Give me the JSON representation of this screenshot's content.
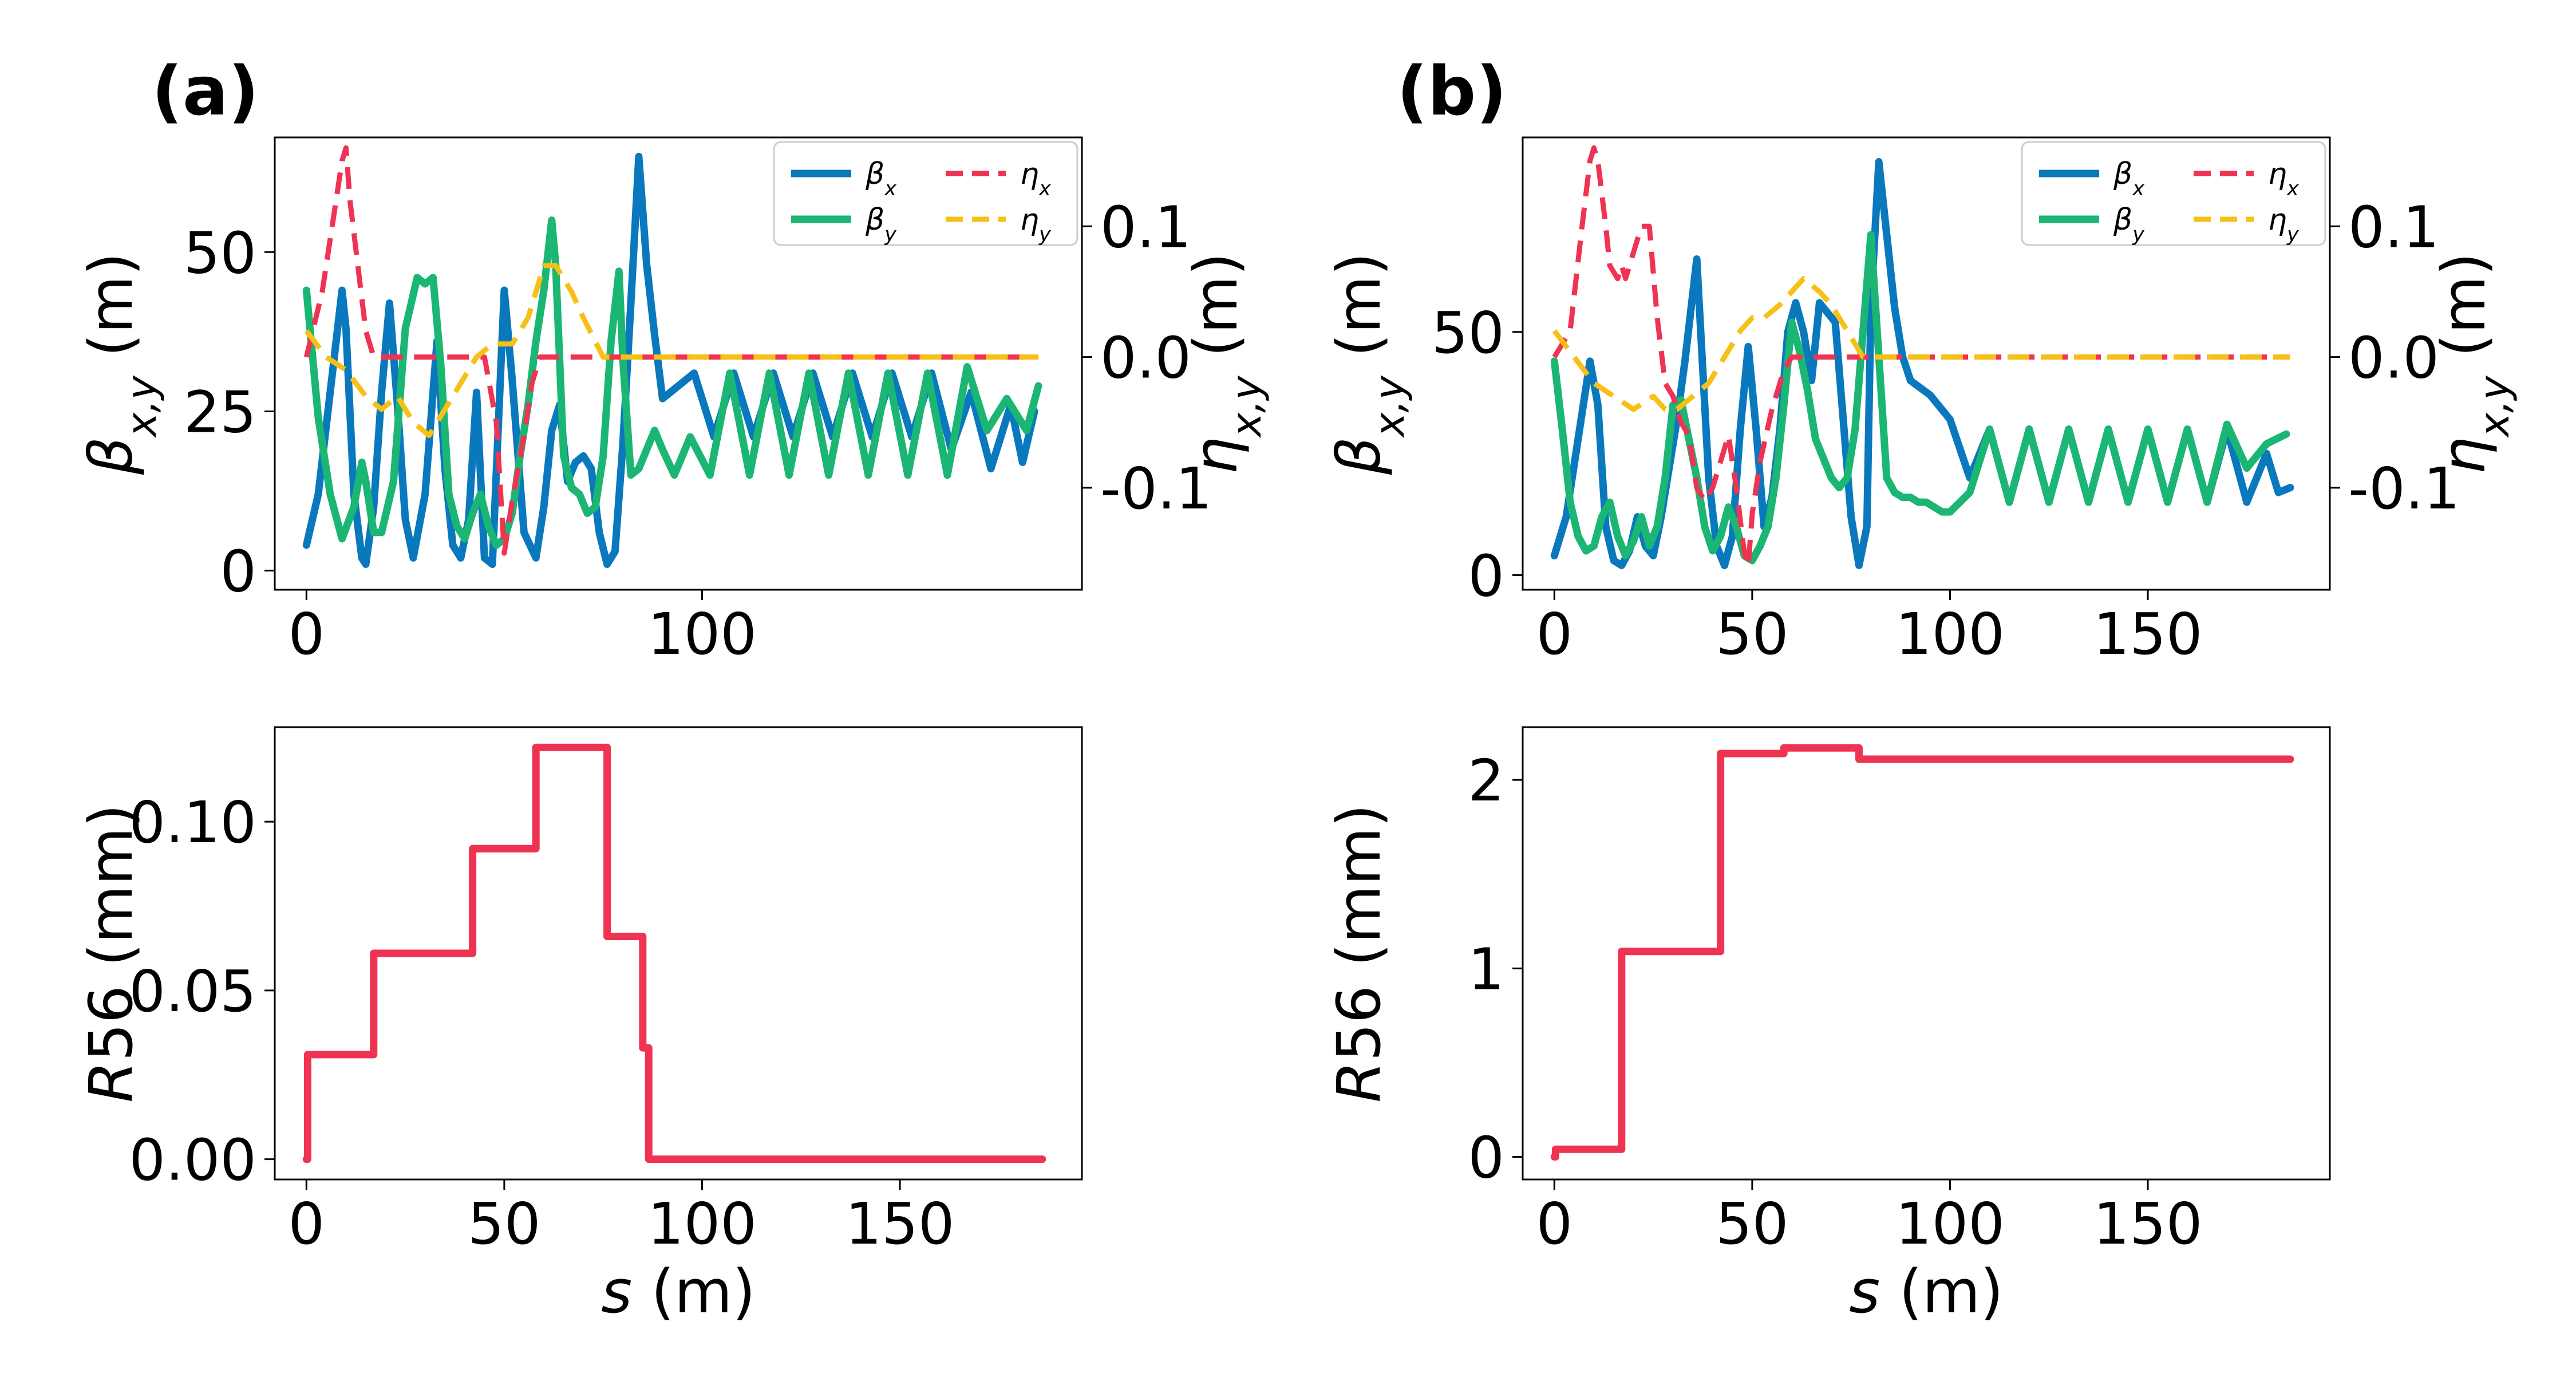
{
  "labels": {
    "a": "(a)",
    "b": "(b)"
  },
  "colors": {
    "beta_x": "#0a78bd",
    "beta_y": "#1bb674",
    "eta_x": "#ef3352",
    "eta_y": "#f8bf16",
    "r56": "#ef3352"
  },
  "chart_data": [
    {
      "id": "a-top",
      "type": "line",
      "xlabel": "",
      "ylabel": "β_{x,y} (m)",
      "y2label": "η_{x,y} (m)",
      "xlim": [
        -8,
        196
      ],
      "ylim": [
        -3,
        68
      ],
      "y2lim": [
        -0.178,
        0.168
      ],
      "xticks": [
        0,
        100
      ],
      "xtick_labels": [
        "0",
        "100"
      ],
      "yticks": [
        0,
        25,
        50
      ],
      "ytick_labels": [
        "0",
        "25",
        "50"
      ],
      "y2ticks": [
        -0.1,
        0.0,
        0.1
      ],
      "y2tick_labels": [
        "-0.1",
        "0.0",
        "0.1"
      ],
      "legend": "top-right",
      "series": [
        {
          "name": "β_x",
          "axis": "left",
          "style": "solid",
          "color": "#0a78bd",
          "x": [
            0,
            3,
            6,
            9,
            10,
            12,
            14,
            15,
            17,
            19,
            21,
            23,
            25,
            27,
            30,
            33,
            35,
            37,
            39,
            41,
            43,
            45,
            47,
            49,
            50,
            52,
            55,
            58,
            60,
            62,
            64,
            66,
            68,
            70,
            72,
            74,
            76,
            78,
            80,
            82,
            84,
            86,
            88,
            90,
            94,
            98,
            103,
            108,
            113,
            118,
            123,
            128,
            133,
            138,
            143,
            148,
            153,
            158,
            163,
            168,
            173,
            178,
            181,
            184
          ],
          "y": [
            4,
            12,
            28,
            44,
            38,
            12,
            2,
            1,
            10,
            28,
            42,
            26,
            8,
            2,
            12,
            36,
            16,
            4,
            2,
            8,
            28,
            2,
            1,
            30,
            44,
            30,
            6,
            2,
            10,
            22,
            26,
            14,
            17,
            18,
            16,
            6,
            1,
            3,
            20,
            42,
            65,
            48,
            37,
            27,
            29,
            31,
            21,
            31,
            21,
            31,
            21,
            31,
            21,
            31,
            21,
            31,
            21,
            31,
            19,
            28,
            16,
            26,
            17,
            25
          ]
        },
        {
          "name": "β_y",
          "axis": "left",
          "style": "solid",
          "color": "#1bb674",
          "x": [
            0,
            3,
            6,
            9,
            12,
            14,
            15,
            17,
            19,
            22,
            25,
            28,
            30,
            32,
            34,
            36,
            38,
            40,
            42,
            44,
            46,
            48,
            50,
            52,
            54,
            56,
            58,
            60,
            62,
            63,
            65,
            67,
            69,
            71,
            73,
            75,
            77,
            79,
            80,
            82,
            84,
            86,
            88,
            90,
            93,
            97,
            102,
            107,
            112,
            117,
            122,
            127,
            132,
            137,
            142,
            147,
            152,
            157,
            162,
            167,
            172,
            177,
            182,
            185
          ],
          "y": [
            44,
            24,
            12,
            5,
            10,
            17,
            14,
            6,
            6,
            14,
            38,
            46,
            45,
            46,
            32,
            12,
            7,
            5,
            9,
            12,
            7,
            4,
            5,
            9,
            18,
            26,
            36,
            44,
            55,
            48,
            18,
            13,
            12,
            9,
            10,
            18,
            36,
            47,
            33,
            15,
            16,
            19,
            22,
            19,
            15,
            21,
            15,
            31,
            15,
            31,
            15,
            31,
            15,
            31,
            15,
            31,
            15,
            31,
            15,
            32,
            22,
            27,
            22,
            29
          ]
        },
        {
          "name": "η_x",
          "axis": "right",
          "style": "dashed",
          "color": "#ef3352",
          "x": [
            0,
            4,
            7,
            9,
            10,
            11,
            13,
            15,
            17,
            30,
            40,
            45,
            48,
            50,
            52,
            55,
            57,
            59,
            61,
            65,
            80,
            90,
            100,
            150,
            185
          ],
          "y": [
            0,
            0.05,
            0.11,
            0.15,
            0.16,
            0.12,
            0.07,
            0.02,
            0,
            0,
            0,
            0,
            -0.05,
            -0.15,
            -0.11,
            -0.06,
            -0.02,
            0,
            0,
            0,
            0,
            0,
            0,
            0,
            0
          ]
        },
        {
          "name": "η_y",
          "axis": "right",
          "style": "dashed",
          "color": "#f8bf16",
          "x": [
            0,
            5,
            10,
            15,
            19,
            23,
            27,
            31,
            35,
            39,
            43,
            47,
            52,
            56,
            60,
            63,
            67,
            70,
            75,
            80,
            85,
            90,
            100,
            150,
            185
          ],
          "y": [
            0.02,
            0,
            -0.01,
            -0.03,
            -0.04,
            -0.03,
            -0.05,
            -0.06,
            -0.04,
            -0.02,
            0,
            0.01,
            0.01,
            0.03,
            0.07,
            0.07,
            0.05,
            0.03,
            0,
            0,
            0,
            0,
            0,
            0,
            0
          ]
        }
      ]
    },
    {
      "id": "a-bottom",
      "type": "line",
      "xlabel": "s (m)",
      "ylabel": "R56 (mm)",
      "xlim": [
        -8,
        196
      ],
      "ylim": [
        -0.006,
        0.128
      ],
      "xticks": [
        0,
        50,
        100,
        150
      ],
      "xtick_labels": [
        "0",
        "50",
        "100",
        "150"
      ],
      "yticks": [
        0,
        0.05,
        0.1
      ],
      "ytick_labels": [
        "0.00",
        "0.05",
        "0.10"
      ],
      "series": [
        {
          "name": "R56",
          "style": "solid",
          "color": "#ef3352",
          "x": [
            0,
            0.3,
            0.3,
            17,
            17,
            42,
            42,
            58,
            58,
            76,
            76,
            85,
            85,
            86.5,
            86.5,
            87.5,
            87.5,
            186
          ],
          "y": [
            0,
            0,
            0.031,
            0.031,
            0.061,
            0.061,
            0.092,
            0.092,
            0.122,
            0.122,
            0.066,
            0.066,
            0.033,
            0.033,
            0,
            0,
            0,
            0
          ]
        }
      ]
    },
    {
      "id": "b-top",
      "type": "line",
      "xlabel": "",
      "ylabel": "β_{x,y} (m)",
      "y2label": "η_{x,y} (m)",
      "xlim": [
        -8,
        196
      ],
      "ylim": [
        -3,
        90
      ],
      "y2lim": [
        -0.178,
        0.168
      ],
      "xticks": [
        0,
        50,
        100,
        150
      ],
      "xtick_labels": [
        "0",
        "50",
        "100",
        "150"
      ],
      "yticks": [
        0,
        50
      ],
      "ytick_labels": [
        "0",
        "50"
      ],
      "y2ticks": [
        -0.1,
        0.0,
        0.1
      ],
      "y2tick_labels": [
        "-0.1",
        "0.0",
        "0.1"
      ],
      "legend": "top-right",
      "series": [
        {
          "name": "β_x",
          "axis": "left",
          "style": "solid",
          "color": "#0a78bd",
          "x": [
            0,
            3,
            6,
            9,
            11,
            13,
            15,
            17,
            19,
            21,
            23,
            25,
            27,
            29,
            31,
            33,
            35,
            36,
            37,
            39,
            41,
            43,
            45,
            47,
            49,
            51,
            53,
            55,
            57,
            59,
            61,
            63,
            65,
            67,
            69,
            71,
            73,
            75,
            77,
            79,
            80,
            82,
            84,
            86,
            88,
            90,
            95,
            100,
            105,
            110,
            115,
            120,
            125,
            130,
            135,
            140,
            145,
            150,
            155,
            160,
            165,
            170,
            175,
            180,
            183,
            186
          ],
          "y": [
            4,
            12,
            28,
            44,
            35,
            10,
            3,
            2,
            5,
            12,
            6,
            4,
            12,
            22,
            32,
            44,
            58,
            65,
            50,
            20,
            6,
            2,
            8,
            30,
            47,
            30,
            10,
            16,
            30,
            50,
            56,
            50,
            40,
            56,
            54,
            52,
            32,
            12,
            2,
            10,
            55,
            85,
            70,
            55,
            45,
            40,
            37,
            32,
            20,
            30,
            15,
            30,
            15,
            30,
            15,
            30,
            15,
            30,
            15,
            30,
            15,
            30,
            15,
            25,
            17,
            18
          ]
        },
        {
          "name": "β_y",
          "axis": "left",
          "style": "solid",
          "color": "#1bb674",
          "x": [
            0,
            2,
            4,
            6,
            8,
            10,
            12,
            14,
            16,
            18,
            20,
            22,
            24,
            26,
            28,
            30,
            32,
            34,
            36,
            38,
            40,
            42,
            44,
            46,
            48,
            50,
            52,
            54,
            56,
            58,
            60,
            62,
            64,
            66,
            68,
            70,
            72,
            74,
            76,
            78,
            80,
            82,
            84,
            86,
            88,
            90,
            92,
            94,
            96,
            98,
            100,
            105,
            110,
            115,
            120,
            125,
            130,
            135,
            140,
            145,
            150,
            155,
            160,
            165,
            170,
            175,
            180,
            185
          ],
          "y": [
            44,
            30,
            15,
            8,
            5,
            6,
            12,
            15,
            8,
            4,
            7,
            12,
            6,
            10,
            20,
            35,
            36,
            28,
            20,
            10,
            5,
            8,
            14,
            10,
            4,
            3,
            6,
            10,
            20,
            35,
            52,
            46,
            38,
            28,
            24,
            20,
            18,
            20,
            30,
            50,
            70,
            45,
            20,
            17,
            16,
            16,
            15,
            15,
            14,
            13,
            13,
            17,
            30,
            15,
            30,
            15,
            30,
            15,
            30,
            15,
            30,
            15,
            30,
            15,
            31,
            22,
            27,
            29
          ]
        },
        {
          "name": "η_x",
          "axis": "right",
          "style": "dashed",
          "color": "#ef3352",
          "x": [
            0,
            4,
            7,
            9,
            10,
            11,
            13,
            14,
            16,
            17,
            18,
            20,
            22,
            24,
            26,
            28,
            30,
            32,
            34,
            36,
            38,
            40,
            42,
            44,
            46,
            48,
            49,
            50,
            52,
            55,
            58,
            60,
            70,
            90,
            150,
            186
          ],
          "y": [
            0,
            0.02,
            0.1,
            0.15,
            0.16,
            0.15,
            0.1,
            0.07,
            0.06,
            0.07,
            0.06,
            0.08,
            0.1,
            0.1,
            0.03,
            -0.02,
            -0.03,
            -0.05,
            -0.06,
            -0.1,
            -0.11,
            -0.1,
            -0.08,
            -0.06,
            -0.1,
            -0.15,
            -0.16,
            -0.12,
            -0.08,
            -0.04,
            -0.01,
            0,
            0,
            0,
            0,
            0
          ]
        },
        {
          "name": "η_y",
          "axis": "right",
          "style": "dashed",
          "color": "#f8bf16",
          "x": [
            0,
            5,
            10,
            15,
            20,
            25,
            28,
            31,
            35,
            39,
            43,
            47,
            50,
            53,
            57,
            60,
            63,
            67,
            70,
            74,
            78,
            80,
            85,
            90,
            100,
            150,
            186
          ],
          "y": [
            0.02,
            0,
            -0.02,
            -0.03,
            -0.04,
            -0.03,
            -0.04,
            -0.04,
            -0.03,
            -0.02,
            0,
            0.02,
            0.03,
            0.03,
            0.04,
            0.05,
            0.06,
            0.05,
            0.04,
            0.02,
            0,
            0,
            0,
            0,
            0,
            0,
            0
          ]
        }
      ]
    },
    {
      "id": "b-bottom",
      "type": "line",
      "xlabel": "s (m)",
      "ylabel": "R56 (mm)",
      "xlim": [
        -8,
        196
      ],
      "ylim": [
        -0.12,
        2.28
      ],
      "xticks": [
        0,
        50,
        100,
        150
      ],
      "xtick_labels": [
        "0",
        "50",
        "100",
        "150"
      ],
      "yticks": [
        0,
        1,
        2
      ],
      "ytick_labels": [
        "0",
        "1",
        "2"
      ],
      "series": [
        {
          "name": "R56",
          "style": "solid",
          "color": "#ef3352",
          "x": [
            0,
            0.3,
            0.3,
            17,
            17,
            42,
            42,
            58,
            58,
            77,
            77,
            186
          ],
          "y": [
            0,
            0,
            0.04,
            0.04,
            1.09,
            1.09,
            2.14,
            2.14,
            2.17,
            2.17,
            2.11,
            2.11
          ]
        }
      ]
    }
  ]
}
